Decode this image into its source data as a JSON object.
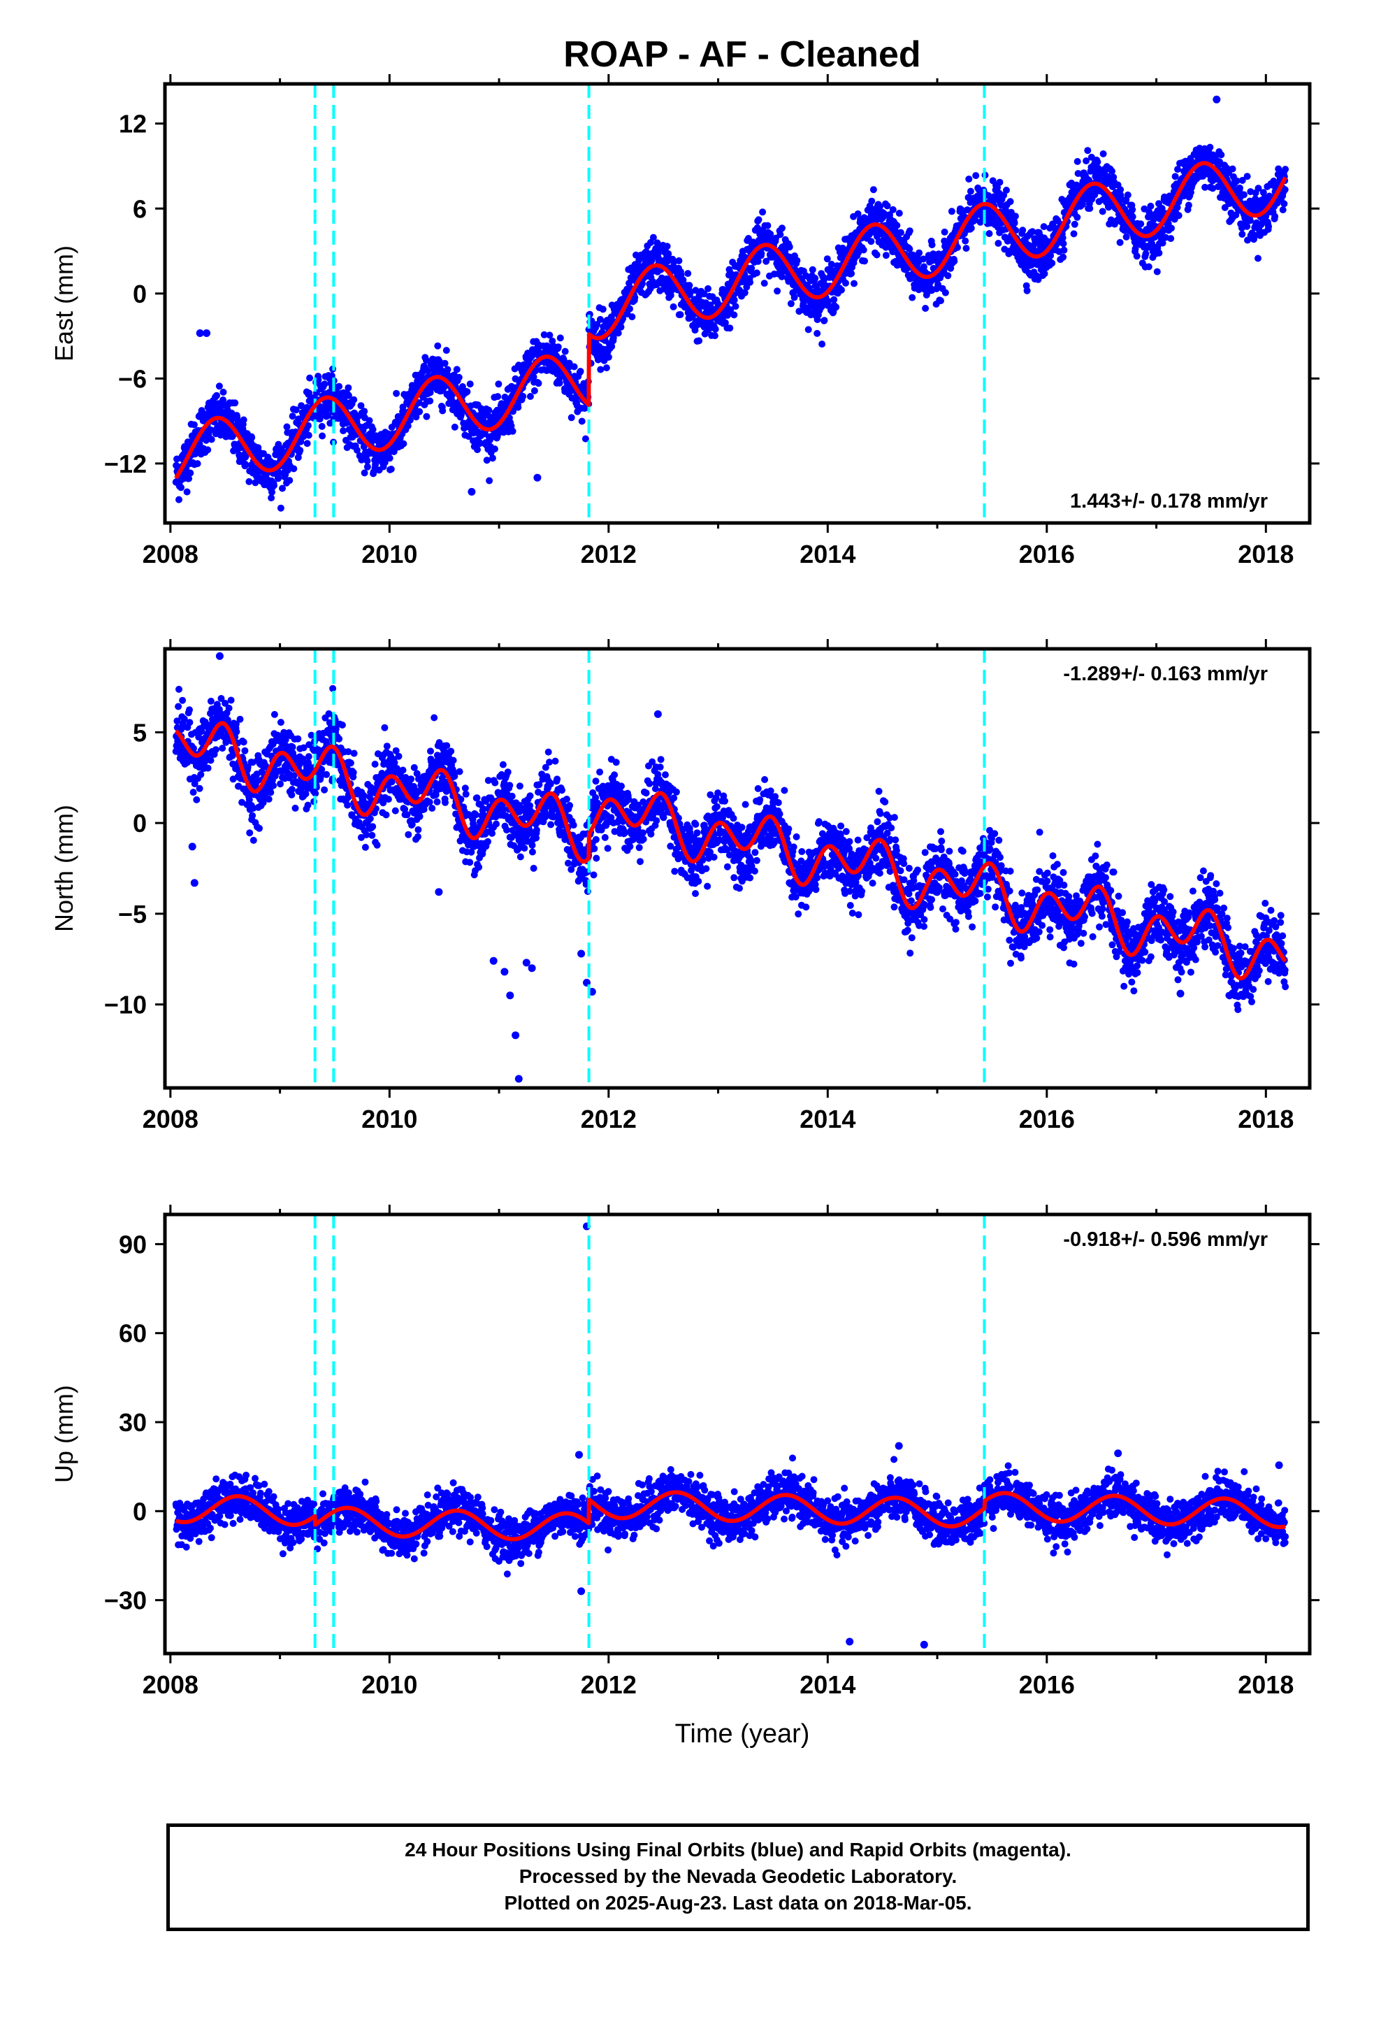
{
  "title": "ROAP  - AF - Cleaned",
  "xlabel": "Time (year)",
  "footer": [
    "24 Hour Positions Using Final Orbits (blue) and Rapid Orbits (magenta).",
    "Processed by the Nevada Geodetic Laboratory.",
    "Plotted on 2025-Aug-23. Last data on 2018-Mar-05."
  ],
  "colors": {
    "data": "#0000ff",
    "model": "#ff0000",
    "breaks": "#00ffff",
    "frame": "#000000"
  },
  "chart_data": [
    {
      "type": "scatter",
      "ylabel": "East (mm)",
      "rate_label": "1.443+/- 0.178 mm/yr",
      "xlim": [
        2007.95,
        2018.4
      ],
      "ylim": [
        -16.2,
        14.8
      ],
      "xticks": [
        2008,
        2010,
        2012,
        2014,
        2016,
        2018
      ],
      "yticks": [
        -12,
        -6,
        0,
        6,
        12
      ],
      "ytick_labels": [
        "−12",
        "−6",
        "0",
        "6",
        "12"
      ],
      "breaks": [
        2009.32,
        2009.49,
        2011.82,
        2015.43
      ],
      "model": {
        "t0": 2008.05,
        "t1": 2018.18,
        "segments": [
          {
            "from": 2008.05,
            "to": 2011.82,
            "offset": -11.6,
            "rate": 1.443,
            "annual_amp": 2.2,
            "annual_peak": 2008.42,
            "semi_amp": 0.0,
            "semi_peak": 2008.0
          },
          {
            "from": 2011.82,
            "to": 2018.18,
            "offset": -6.6,
            "rate": 1.443,
            "annual_amp": 2.2,
            "annual_peak": 2008.42,
            "semi_amp": 0.0,
            "semi_peak": 2008.0
          }
        ]
      },
      "noise": 0.9,
      "outliers": [
        [
          2008.27,
          -2.8
        ],
        [
          2008.33,
          -2.8
        ],
        [
          2010.75,
          -14.0
        ],
        [
          2011.35,
          -13.0
        ],
        [
          2017.55,
          13.7
        ]
      ]
    },
    {
      "type": "scatter",
      "ylabel": "North (mm)",
      "rate_label": "-1.289+/- 0.163 mm/yr",
      "xlim": [
        2007.95,
        2018.4
      ],
      "ylim": [
        -14.6,
        9.6
      ],
      "xticks": [
        2008,
        2010,
        2012,
        2014,
        2016,
        2018
      ],
      "yticks": [
        -10,
        -5,
        0,
        5
      ],
      "ytick_labels": [
        "−10",
        "−5",
        "0",
        "5"
      ],
      "breaks": [
        2009.32,
        2009.49,
        2011.82,
        2015.43
      ],
      "model": {
        "t0": 2008.05,
        "t1": 2018.18,
        "segments": [
          {
            "from": 2008.05,
            "to": 2011.82,
            "offset": 4.5,
            "rate": -1.289,
            "annual_amp": 0.8,
            "annual_peak": 2008.35,
            "semi_amp": 1.1,
            "semi_peak": 2008.5
          },
          {
            "from": 2011.82,
            "to": 2018.18,
            "offset": 5.8,
            "rate": -1.289,
            "annual_amp": 0.8,
            "annual_peak": 2008.35,
            "semi_amp": 1.1,
            "semi_peak": 2008.5
          }
        ]
      },
      "noise": 0.9,
      "outliers": [
        [
          2008.45,
          9.2
        ],
        [
          2008.22,
          -3.3
        ],
        [
          2008.2,
          -1.3
        ],
        [
          2010.45,
          -3.8
        ],
        [
          2010.95,
          -7.6
        ],
        [
          2011.05,
          -8.2
        ],
        [
          2011.1,
          -9.5
        ],
        [
          2011.15,
          -11.7
        ],
        [
          2011.18,
          -14.1
        ],
        [
          2011.25,
          -7.7
        ],
        [
          2011.3,
          -8.0
        ],
        [
          2011.75,
          -7.2
        ],
        [
          2011.8,
          -8.8
        ],
        [
          2011.85,
          -9.3
        ],
        [
          2012.45,
          6.0
        ],
        [
          2017.22,
          -9.4
        ],
        [
          2017.72,
          -9.5
        ]
      ]
    },
    {
      "type": "scatter",
      "ylabel": "Up (mm)",
      "rate_label": "-0.918+/- 0.596 mm/yr",
      "xlim": [
        2007.95,
        2018.4
      ],
      "ylim": [
        -48,
        100
      ],
      "xticks": [
        2008,
        2010,
        2012,
        2014,
        2016,
        2018
      ],
      "yticks": [
        -30,
        0,
        30,
        60,
        90
      ],
      "ytick_labels": [
        "−30",
        "0",
        "30",
        "60",
        "90"
      ],
      "breaks": [
        2009.32,
        2009.49,
        2011.82,
        2015.43
      ],
      "model": {
        "t0": 2008.05,
        "t1": 2018.18,
        "segments": [
          {
            "from": 2008.05,
            "to": 2009.32,
            "offset": 1.0,
            "rate": -0.918,
            "annual_amp": 4.6,
            "annual_peak": 2008.62,
            "semi_amp": 0.0,
            "semi_peak": 2008.0
          },
          {
            "from": 2009.32,
            "to": 2011.82,
            "offset": -2.0,
            "rate": -0.918,
            "annual_amp": 4.6,
            "annual_peak": 2008.62,
            "semi_amp": 0.0,
            "semi_peak": 2008.0
          },
          {
            "from": 2011.82,
            "to": 2015.43,
            "offset": 6.0,
            "rate": -0.918,
            "annual_amp": 4.6,
            "annual_peak": 2008.62,
            "semi_amp": 0.0,
            "semi_peak": 2008.0
          },
          {
            "from": 2015.43,
            "to": 2018.18,
            "offset": 8.5,
            "rate": -0.918,
            "annual_amp": 4.6,
            "annual_peak": 2008.62,
            "semi_amp": 0.0,
            "semi_peak": 2008.0
          }
        ]
      },
      "noise": 3.6,
      "outliers": [
        [
          2011.8,
          96.0
        ],
        [
          2011.73,
          19.0
        ],
        [
          2011.75,
          -27.0
        ],
        [
          2014.2,
          -44.0
        ],
        [
          2014.88,
          -45.0
        ],
        [
          2014.65,
          22.0
        ],
        [
          2016.65,
          19.5
        ],
        [
          2018.12,
          15.5
        ]
      ]
    }
  ]
}
